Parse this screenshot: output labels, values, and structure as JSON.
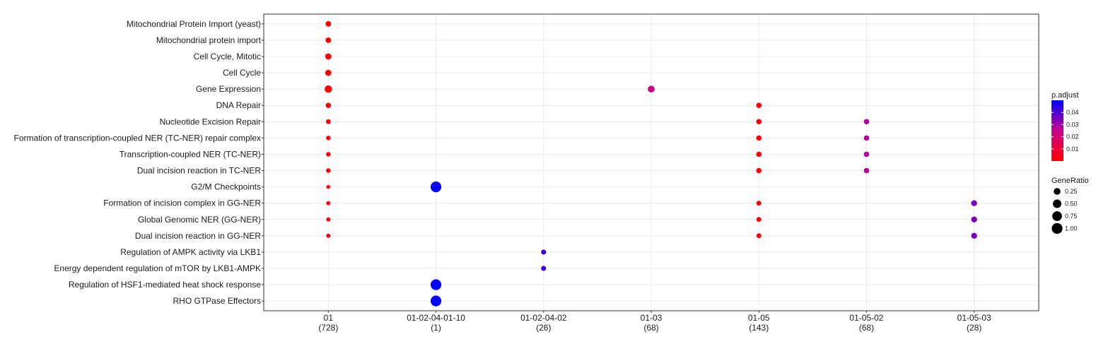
{
  "chart_data": {
    "type": "scatter",
    "title": "",
    "xlabel": "",
    "ylabel": "",
    "grid": true,
    "legend_position": "right",
    "categories": [
      {
        "label": "01",
        "count": "(728)"
      },
      {
        "label": "01-02-04-01-10",
        "count": "(1)"
      },
      {
        "label": "01-02-04-02",
        "count": "(26)"
      },
      {
        "label": "01-03",
        "count": "(68)"
      },
      {
        "label": "01-05",
        "count": "(143)"
      },
      {
        "label": "01-05-02",
        "count": "(68)"
      },
      {
        "label": "01-05-03",
        "count": "(28)"
      }
    ],
    "terms": [
      "Mitochondrial Protein Import (yeast)",
      "Mitochondrial protein import",
      "Cell Cycle, Mitotic",
      "Cell Cycle",
      "Gene Expression",
      "DNA Repair",
      "Nucleotide Excision Repair",
      "Formation of transcription-coupled NER (TC-NER) repair complex",
      "Transcription-coupled NER (TC-NER)",
      "Dual incision reaction in TC-NER",
      "G2/M Checkpoints",
      "Formation of incision complex in GG-NER",
      "Global Genomic NER (GG-NER)",
      "Dual incision reaction in GG-NER",
      "Regulation of AMPK activity via LKB1",
      "Energy dependent regulation of mTOR by LKB1-AMPK",
      "Regulation of HSF1-mediated heat shock response",
      "RHO GTPase Effectors"
    ],
    "points": [
      {
        "category": "01",
        "term": "Mitochondrial Protein Import (yeast)",
        "gene_ratio": 0.12,
        "p_adjust": 0.001
      },
      {
        "category": "01",
        "term": "Mitochondrial protein import",
        "gene_ratio": 0.12,
        "p_adjust": 0.001
      },
      {
        "category": "01",
        "term": "Cell Cycle, Mitotic",
        "gene_ratio": 0.18,
        "p_adjust": 0.0005
      },
      {
        "category": "01",
        "term": "Cell Cycle",
        "gene_ratio": 0.18,
        "p_adjust": 0.0005
      },
      {
        "category": "01",
        "term": "Gene Expression",
        "gene_ratio": 0.33,
        "p_adjust": 0.0003
      },
      {
        "category": "01",
        "term": "DNA Repair",
        "gene_ratio": 0.1,
        "p_adjust": 0.001
      },
      {
        "category": "01",
        "term": "Nucleotide Excision Repair",
        "gene_ratio": 0.06,
        "p_adjust": 0.002
      },
      {
        "category": "01",
        "term": "Formation of transcription-coupled NER (TC-NER) repair complex",
        "gene_ratio": 0.05,
        "p_adjust": 0.002
      },
      {
        "category": "01",
        "term": "Transcription-coupled NER (TC-NER)",
        "gene_ratio": 0.05,
        "p_adjust": 0.002
      },
      {
        "category": "01",
        "term": "Dual incision reaction in TC-NER",
        "gene_ratio": 0.05,
        "p_adjust": 0.002
      },
      {
        "category": "01",
        "term": "G2/M Checkpoints",
        "gene_ratio": 0.02,
        "p_adjust": 0.003
      },
      {
        "category": "01",
        "term": "Formation of incision complex in GG-NER",
        "gene_ratio": 0.03,
        "p_adjust": 0.003
      },
      {
        "category": "01",
        "term": "Global Genomic NER (GG-NER)",
        "gene_ratio": 0.03,
        "p_adjust": 0.003
      },
      {
        "category": "01",
        "term": "Dual incision reaction in GG-NER",
        "gene_ratio": 0.03,
        "p_adjust": 0.003
      },
      {
        "category": "01-02-04-01-10",
        "term": "G2/M Checkpoints",
        "gene_ratio": 1.0,
        "p_adjust": 0.05
      },
      {
        "category": "01-02-04-01-10",
        "term": "Regulation of HSF1-mediated heat shock response",
        "gene_ratio": 1.0,
        "p_adjust": 0.05
      },
      {
        "category": "01-02-04-01-10",
        "term": "RHO GTPase Effectors",
        "gene_ratio": 1.0,
        "p_adjust": 0.05
      },
      {
        "category": "01-02-04-02",
        "term": "Regulation of AMPK activity via LKB1",
        "gene_ratio": 0.08,
        "p_adjust": 0.042
      },
      {
        "category": "01-02-04-02",
        "term": "Energy dependent regulation of mTOR by LKB1-AMPK",
        "gene_ratio": 0.08,
        "p_adjust": 0.042
      },
      {
        "category": "01-03",
        "term": "Gene Expression",
        "gene_ratio": 0.25,
        "p_adjust": 0.024
      },
      {
        "category": "01-05",
        "term": "DNA Repair",
        "gene_ratio": 0.1,
        "p_adjust": 0.001
      },
      {
        "category": "01-05",
        "term": "Nucleotide Excision Repair",
        "gene_ratio": 0.1,
        "p_adjust": 0.001
      },
      {
        "category": "01-05",
        "term": "Formation of transcription-coupled NER (TC-NER) repair complex",
        "gene_ratio": 0.1,
        "p_adjust": 0.001
      },
      {
        "category": "01-05",
        "term": "Transcription-coupled NER (TC-NER)",
        "gene_ratio": 0.1,
        "p_adjust": 0.001
      },
      {
        "category": "01-05",
        "term": "Dual incision reaction in TC-NER",
        "gene_ratio": 0.1,
        "p_adjust": 0.001
      },
      {
        "category": "01-05",
        "term": "Formation of incision complex in GG-NER",
        "gene_ratio": 0.07,
        "p_adjust": 0.002
      },
      {
        "category": "01-05",
        "term": "Global Genomic NER (GG-NER)",
        "gene_ratio": 0.07,
        "p_adjust": 0.002
      },
      {
        "category": "01-05",
        "term": "Dual incision reaction in GG-NER",
        "gene_ratio": 0.07,
        "p_adjust": 0.002
      },
      {
        "category": "01-05-02",
        "term": "Nucleotide Excision Repair",
        "gene_ratio": 0.1,
        "p_adjust": 0.028
      },
      {
        "category": "01-05-02",
        "term": "Formation of transcription-coupled NER (TC-NER) repair complex",
        "gene_ratio": 0.1,
        "p_adjust": 0.028
      },
      {
        "category": "01-05-02",
        "term": "Transcription-coupled NER (TC-NER)",
        "gene_ratio": 0.1,
        "p_adjust": 0.028
      },
      {
        "category": "01-05-02",
        "term": "Dual incision reaction in TC-NER",
        "gene_ratio": 0.1,
        "p_adjust": 0.028
      },
      {
        "category": "01-05-03",
        "term": "Formation of incision complex in GG-NER",
        "gene_ratio": 0.15,
        "p_adjust": 0.035
      },
      {
        "category": "01-05-03",
        "term": "Global Genomic NER (GG-NER)",
        "gene_ratio": 0.15,
        "p_adjust": 0.035
      },
      {
        "category": "01-05-03",
        "term": "Dual incision reaction in GG-NER",
        "gene_ratio": 0.15,
        "p_adjust": 0.035
      }
    ],
    "color_legend": {
      "title": "p.adjust",
      "ticks": [
        "0.01",
        "0.02",
        "0.03",
        "0.04"
      ],
      "tick_values": [
        0.01,
        0.02,
        0.03,
        0.04
      ],
      "range": [
        0.0,
        0.05
      ],
      "low_color": "#ff0000",
      "high_color": "#0000ff"
    },
    "size_legend": {
      "title": "GeneRatio",
      "labels": [
        "0.25",
        "0.50",
        "0.75",
        "1.00"
      ],
      "values": [
        0.25,
        0.5,
        0.75,
        1.0
      ]
    }
  }
}
